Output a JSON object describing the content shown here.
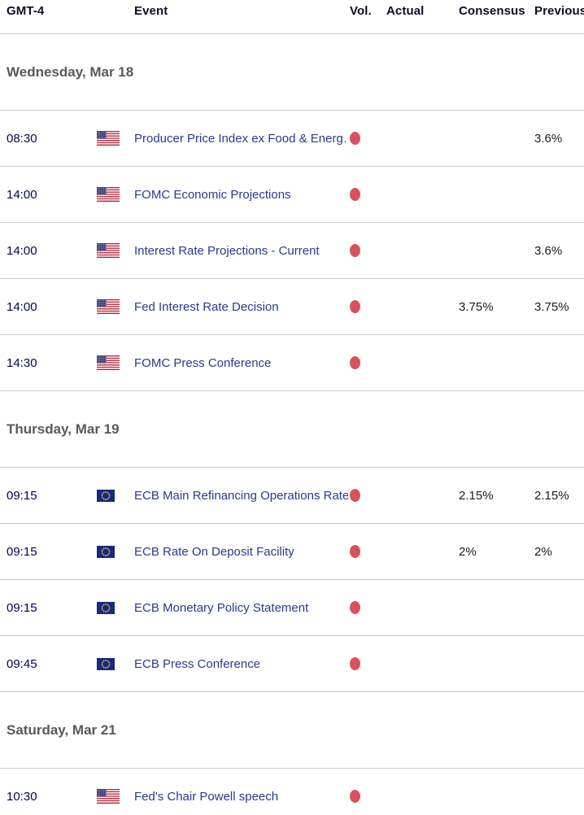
{
  "header": {
    "gmt": "GMT-4",
    "event": "Event",
    "vol": "Vol.",
    "actual": "Actual",
    "consensus": "Consensus",
    "previous": "Previous"
  },
  "colors": {
    "event_link": "#2b3990",
    "time_text": "#02044e",
    "day_text": "#58595b",
    "value_text": "#1b1b1b",
    "separator": "#cbcbcb",
    "volatility_high_dot": "#d8525c",
    "us_flag_red": "#b22234",
    "us_flag_blue": "#3c3b6e",
    "eu_flag_blue": "#19297c",
    "eu_flag_gold": "#f8d147"
  },
  "icons": {
    "volatility": "volatility-high-dot-icon",
    "us": "us-flag-icon",
    "eu": "eu-flag-icon"
  },
  "sections": [
    {
      "day": "Wednesday, Mar 18",
      "rows": [
        {
          "time": "08:30",
          "country": "US",
          "event": "Producer Price Index ex Food & Energ…",
          "vol": "high",
          "actual": "",
          "consensus": "",
          "previous": "3.6%"
        },
        {
          "time": "14:00",
          "country": "US",
          "event": "FOMC Economic Projections",
          "vol": "high",
          "actual": "",
          "consensus": "",
          "previous": ""
        },
        {
          "time": "14:00",
          "country": "US",
          "event": "Interest Rate Projections - Current",
          "vol": "high",
          "actual": "",
          "consensus": "",
          "previous": "3.6%"
        },
        {
          "time": "14:00",
          "country": "US",
          "event": "Fed Interest Rate Decision",
          "vol": "high",
          "actual": "",
          "consensus": "3.75%",
          "previous": "3.75%"
        },
        {
          "time": "14:30",
          "country": "US",
          "event": "FOMC Press Conference",
          "vol": "high",
          "actual": "",
          "consensus": "",
          "previous": ""
        }
      ]
    },
    {
      "day": "Thursday, Mar 19",
      "rows": [
        {
          "time": "09:15",
          "country": "EU",
          "event": "ECB Main Refinancing Operations Rate",
          "vol": "high",
          "actual": "",
          "consensus": "2.15%",
          "previous": "2.15%"
        },
        {
          "time": "09:15",
          "country": "EU",
          "event": "ECB Rate On Deposit Facility",
          "vol": "high",
          "actual": "",
          "consensus": "2%",
          "previous": "2%"
        },
        {
          "time": "09:15",
          "country": "EU",
          "event": "ECB Monetary Policy Statement",
          "vol": "high",
          "actual": "",
          "consensus": "",
          "previous": ""
        },
        {
          "time": "09:45",
          "country": "EU",
          "event": "ECB Press Conference",
          "vol": "high",
          "actual": "",
          "consensus": "",
          "previous": ""
        }
      ]
    },
    {
      "day": "Saturday, Mar 21",
      "rows": [
        {
          "time": "10:30",
          "country": "US",
          "event": "Fed's Chair Powell speech",
          "vol": "high",
          "actual": "",
          "consensus": "",
          "previous": ""
        }
      ]
    }
  ]
}
